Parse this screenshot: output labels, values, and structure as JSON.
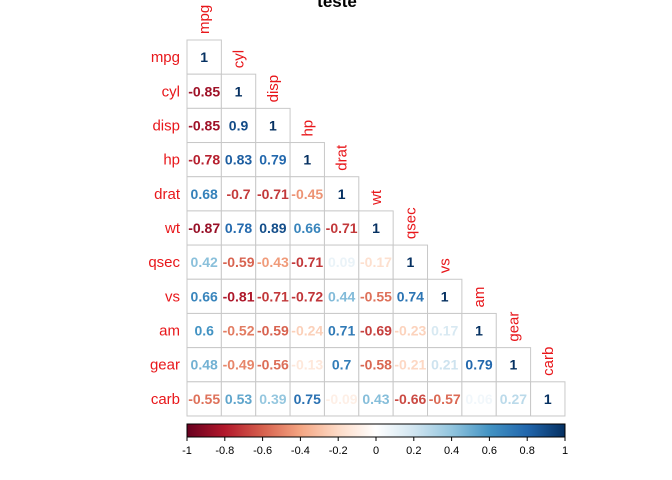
{
  "chart_data": {
    "type": "heatmap",
    "title": "teste",
    "variables": [
      "mpg",
      "cyl",
      "disp",
      "hp",
      "drat",
      "wt",
      "qsec",
      "vs",
      "am",
      "gear",
      "carb"
    ],
    "matrix_type": "lower",
    "value_labels": [
      [
        "1"
      ],
      [
        "-0.85",
        "1"
      ],
      [
        "-0.85",
        "0.9",
        "1"
      ],
      [
        "-0.78",
        "0.83",
        "0.79",
        "1"
      ],
      [
        "0.68",
        "-0.7",
        "-0.71",
        "-0.45",
        "1"
      ],
      [
        "-0.87",
        "0.78",
        "0.89",
        "0.66",
        "-0.71",
        "1"
      ],
      [
        "0.42",
        "-0.59",
        "-0.43",
        "-0.71",
        "0.09",
        "-0.17",
        "1"
      ],
      [
        "0.66",
        "-0.81",
        "-0.71",
        "-0.72",
        "0.44",
        "-0.55",
        "0.74",
        "1"
      ],
      [
        "0.6",
        "-0.52",
        "-0.59",
        "-0.24",
        "0.71",
        "-0.69",
        "-0.23",
        "0.17",
        "1"
      ],
      [
        "0.48",
        "-0.49",
        "-0.56",
        "-0.13",
        "0.7",
        "-0.58",
        "-0.21",
        "0.21",
        "0.79",
        "1"
      ],
      [
        "-0.55",
        "0.53",
        "0.39",
        "0.75",
        "-0.09",
        "0.43",
        "-0.66",
        "-0.57",
        "0.06",
        "0.27",
        "1"
      ]
    ],
    "color_scale": {
      "range": [
        -1,
        1
      ],
      "ticks": [
        "-1",
        "-0.8",
        "-0.6",
        "-0.4",
        "-0.2",
        "0",
        "0.2",
        "0.4",
        "0.6",
        "0.8",
        "1"
      ],
      "colors": [
        "#67001f",
        "#b2182b",
        "#d6604d",
        "#f4a582",
        "#fddbc7",
        "#ffffff",
        "#d1e5f0",
        "#92c5de",
        "#4393c3",
        "#2166ac",
        "#053061"
      ]
    },
    "legend_placement": "bottom",
    "label_color": "#e8171b",
    "grid": true
  }
}
